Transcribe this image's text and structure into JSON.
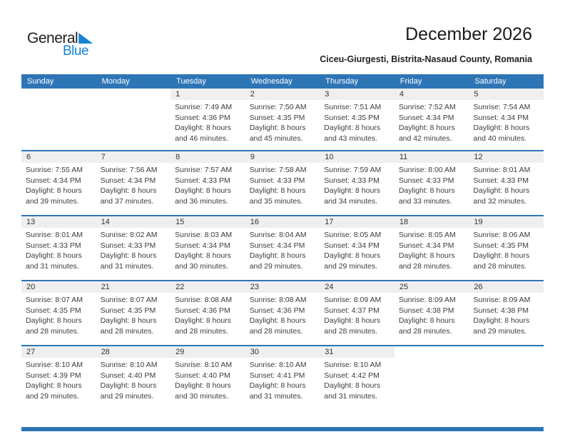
{
  "logo": {
    "line1": "General",
    "line2": "Blue"
  },
  "page": {
    "title": "December 2026",
    "subtitle": "Ciceu-Giurgesti, Bistrita-Nasaud County, Romania"
  },
  "labels": {
    "sunrise": "Sunrise:",
    "sunset": "Sunset:",
    "daylight": "Daylight:"
  },
  "weekdays": [
    "Sunday",
    "Monday",
    "Tuesday",
    "Wednesday",
    "Thursday",
    "Friday",
    "Saturday"
  ],
  "colors": {
    "header_bg": "#2E75B6",
    "row_divider": "#2E75B6",
    "date_band": "#EFEFEF",
    "logo_blue": "#1583D6",
    "footer_bar": "#2E75B6"
  },
  "weeks": [
    [
      null,
      null,
      {
        "date": "1",
        "sunrise": "7:49 AM",
        "sunset": "4:36 PM",
        "daylight": "8 hours and 46 minutes."
      },
      {
        "date": "2",
        "sunrise": "7:50 AM",
        "sunset": "4:35 PM",
        "daylight": "8 hours and 45 minutes."
      },
      {
        "date": "3",
        "sunrise": "7:51 AM",
        "sunset": "4:35 PM",
        "daylight": "8 hours and 43 minutes."
      },
      {
        "date": "4",
        "sunrise": "7:52 AM",
        "sunset": "4:34 PM",
        "daylight": "8 hours and 42 minutes."
      },
      {
        "date": "5",
        "sunrise": "7:54 AM",
        "sunset": "4:34 PM",
        "daylight": "8 hours and 40 minutes."
      }
    ],
    [
      {
        "date": "6",
        "sunrise": "7:55 AM",
        "sunset": "4:34 PM",
        "daylight": "8 hours and 39 minutes."
      },
      {
        "date": "7",
        "sunrise": "7:56 AM",
        "sunset": "4:34 PM",
        "daylight": "8 hours and 37 minutes."
      },
      {
        "date": "8",
        "sunrise": "7:57 AM",
        "sunset": "4:33 PM",
        "daylight": "8 hours and 36 minutes."
      },
      {
        "date": "9",
        "sunrise": "7:58 AM",
        "sunset": "4:33 PM",
        "daylight": "8 hours and 35 minutes."
      },
      {
        "date": "10",
        "sunrise": "7:59 AM",
        "sunset": "4:33 PM",
        "daylight": "8 hours and 34 minutes."
      },
      {
        "date": "11",
        "sunrise": "8:00 AM",
        "sunset": "4:33 PM",
        "daylight": "8 hours and 33 minutes."
      },
      {
        "date": "12",
        "sunrise": "8:01 AM",
        "sunset": "4:33 PM",
        "daylight": "8 hours and 32 minutes."
      }
    ],
    [
      {
        "date": "13",
        "sunrise": "8:01 AM",
        "sunset": "4:33 PM",
        "daylight": "8 hours and 31 minutes."
      },
      {
        "date": "14",
        "sunrise": "8:02 AM",
        "sunset": "4:33 PM",
        "daylight": "8 hours and 31 minutes."
      },
      {
        "date": "15",
        "sunrise": "8:03 AM",
        "sunset": "4:34 PM",
        "daylight": "8 hours and 30 minutes."
      },
      {
        "date": "16",
        "sunrise": "8:04 AM",
        "sunset": "4:34 PM",
        "daylight": "8 hours and 29 minutes."
      },
      {
        "date": "17",
        "sunrise": "8:05 AM",
        "sunset": "4:34 PM",
        "daylight": "8 hours and 29 minutes."
      },
      {
        "date": "18",
        "sunrise": "8:05 AM",
        "sunset": "4:34 PM",
        "daylight": "8 hours and 28 minutes."
      },
      {
        "date": "19",
        "sunrise": "8:06 AM",
        "sunset": "4:35 PM",
        "daylight": "8 hours and 28 minutes."
      }
    ],
    [
      {
        "date": "20",
        "sunrise": "8:07 AM",
        "sunset": "4:35 PM",
        "daylight": "8 hours and 28 minutes."
      },
      {
        "date": "21",
        "sunrise": "8:07 AM",
        "sunset": "4:35 PM",
        "daylight": "8 hours and 28 minutes."
      },
      {
        "date": "22",
        "sunrise": "8:08 AM",
        "sunset": "4:36 PM",
        "daylight": "8 hours and 28 minutes."
      },
      {
        "date": "23",
        "sunrise": "8:08 AM",
        "sunset": "4:36 PM",
        "daylight": "8 hours and 28 minutes."
      },
      {
        "date": "24",
        "sunrise": "8:09 AM",
        "sunset": "4:37 PM",
        "daylight": "8 hours and 28 minutes."
      },
      {
        "date": "25",
        "sunrise": "8:09 AM",
        "sunset": "4:38 PM",
        "daylight": "8 hours and 28 minutes."
      },
      {
        "date": "26",
        "sunrise": "8:09 AM",
        "sunset": "4:38 PM",
        "daylight": "8 hours and 29 minutes."
      }
    ],
    [
      {
        "date": "27",
        "sunrise": "8:10 AM",
        "sunset": "4:39 PM",
        "daylight": "8 hours and 29 minutes."
      },
      {
        "date": "28",
        "sunrise": "8:10 AM",
        "sunset": "4:40 PM",
        "daylight": "8 hours and 29 minutes."
      },
      {
        "date": "29",
        "sunrise": "8:10 AM",
        "sunset": "4:40 PM",
        "daylight": "8 hours and 30 minutes."
      },
      {
        "date": "30",
        "sunrise": "8:10 AM",
        "sunset": "4:41 PM",
        "daylight": "8 hours and 31 minutes."
      },
      {
        "date": "31",
        "sunrise": "8:10 AM",
        "sunset": "4:42 PM",
        "daylight": "8 hours and 31 minutes."
      },
      null,
      null
    ]
  ]
}
